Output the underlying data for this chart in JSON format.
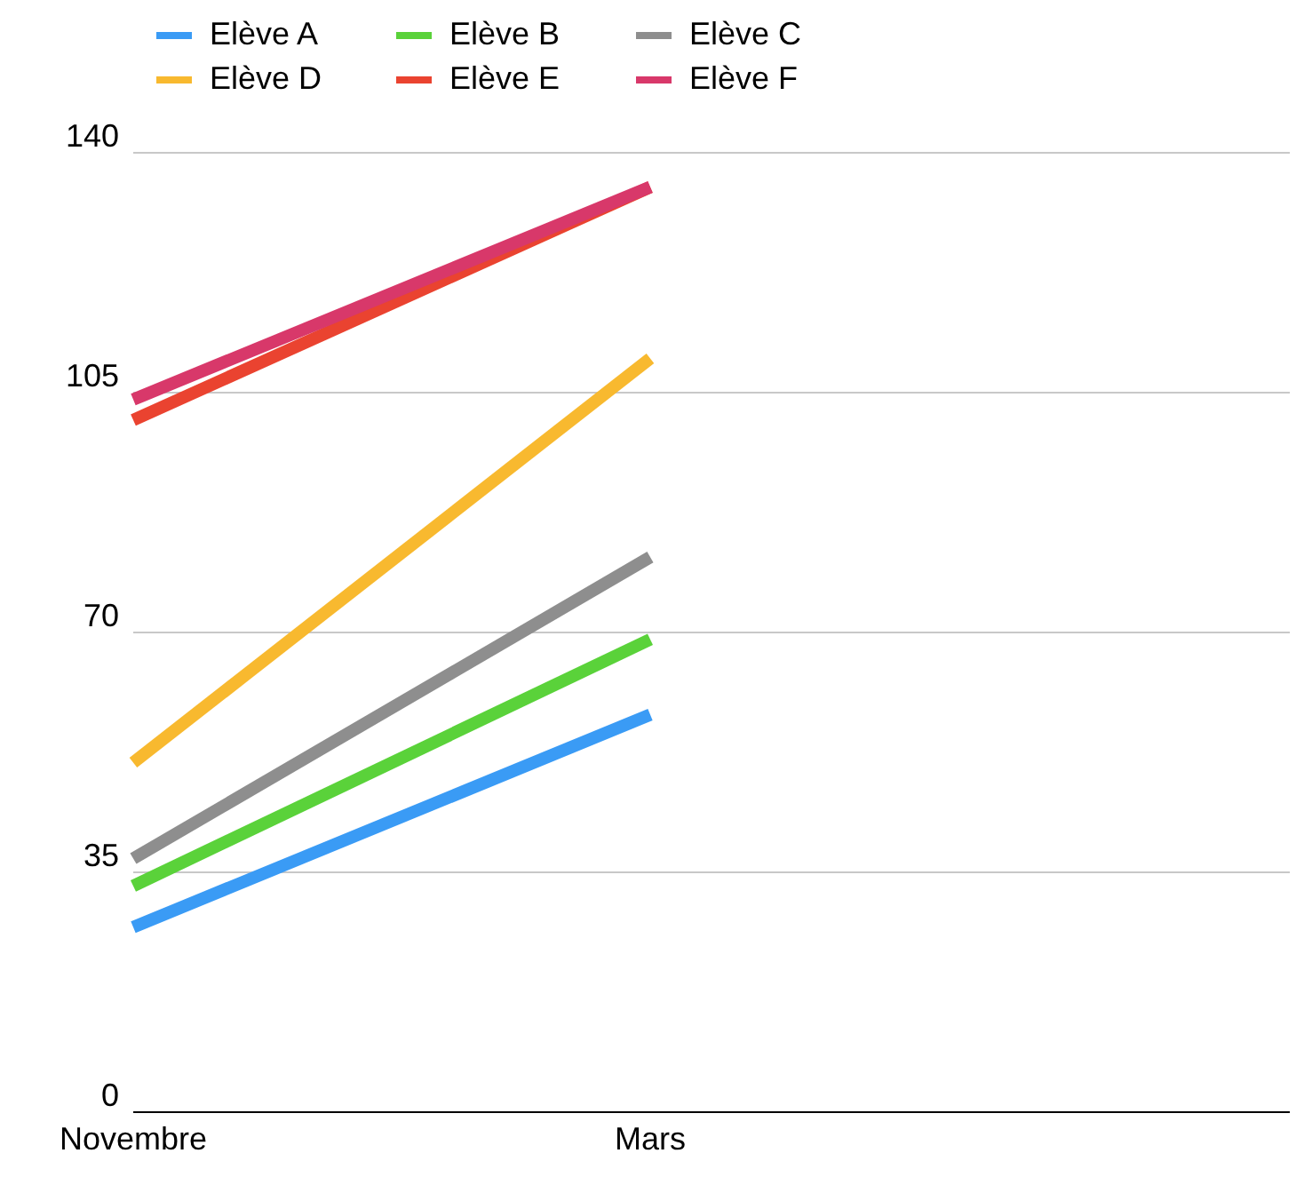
{
  "chart_data": {
    "type": "line",
    "categories": [
      "Novembre",
      "Mars"
    ],
    "series": [
      {
        "name": "Elève A",
        "color": "#3a9bf5",
        "values": [
          27,
          58
        ]
      },
      {
        "name": "Elève B",
        "color": "#5ad23a",
        "values": [
          33,
          69
        ]
      },
      {
        "name": "Elève C",
        "color": "#8e8e8e",
        "values": [
          37,
          81
        ]
      },
      {
        "name": "Elève D",
        "color": "#f8b92f",
        "values": [
          51,
          110
        ]
      },
      {
        "name": "Elève E",
        "color": "#ea4330",
        "values": [
          101,
          135
        ]
      },
      {
        "name": "Elève F",
        "color": "#d8386a",
        "values": [
          104,
          135
        ]
      }
    ],
    "ylim": [
      0,
      140
    ],
    "yticks": [
      0,
      35,
      70,
      105,
      140
    ],
    "grid": "y",
    "legend": "top left",
    "marker": "none",
    "line_style": "solid"
  }
}
